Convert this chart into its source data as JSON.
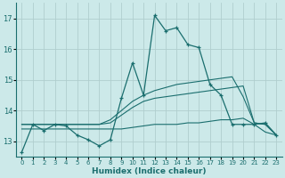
{
  "xlabel": "Humidex (Indice chaleur)",
  "xlim": [
    -0.5,
    23.5
  ],
  "ylim": [
    12.5,
    17.5
  ],
  "yticks": [
    13,
    14,
    15,
    16,
    17
  ],
  "xticks": [
    0,
    1,
    2,
    3,
    4,
    5,
    6,
    7,
    8,
    9,
    10,
    11,
    12,
    13,
    14,
    15,
    16,
    17,
    18,
    19,
    20,
    21,
    22,
    23
  ],
  "bg_color": "#cce9e9",
  "grid_color": "#b0cece",
  "line_color": "#1a6e6e",
  "series1_x": [
    0,
    1,
    2,
    3,
    4,
    5,
    6,
    7,
    8,
    9,
    10,
    11,
    12,
    13,
    14,
    15,
    16,
    17,
    18,
    19,
    20,
    21,
    22,
    23
  ],
  "series1_y": [
    12.65,
    13.55,
    13.35,
    13.55,
    13.5,
    13.2,
    13.05,
    12.85,
    13.05,
    14.4,
    15.55,
    14.5,
    17.1,
    16.6,
    16.7,
    16.15,
    16.05,
    14.85,
    14.5,
    13.55,
    13.55,
    13.55,
    13.6,
    13.2
  ],
  "series2_x": [
    0,
    1,
    2,
    3,
    4,
    5,
    6,
    7,
    8,
    9,
    10,
    11,
    12,
    13,
    14,
    15,
    16,
    17,
    18,
    19,
    20,
    21,
    22,
    23
  ],
  "series2_y": [
    13.4,
    13.4,
    13.4,
    13.4,
    13.4,
    13.4,
    13.4,
    13.4,
    13.4,
    13.4,
    13.45,
    13.5,
    13.55,
    13.55,
    13.55,
    13.6,
    13.6,
    13.65,
    13.7,
    13.7,
    13.75,
    13.55,
    13.3,
    13.2
  ],
  "series3_x": [
    0,
    1,
    2,
    3,
    4,
    5,
    6,
    7,
    8,
    9,
    10,
    11,
    12,
    13,
    14,
    15,
    16,
    17,
    18,
    19,
    20,
    21,
    22,
    23
  ],
  "series3_y": [
    13.55,
    13.55,
    13.55,
    13.55,
    13.55,
    13.55,
    13.55,
    13.55,
    13.6,
    13.85,
    14.1,
    14.3,
    14.4,
    14.45,
    14.5,
    14.55,
    14.6,
    14.65,
    14.7,
    14.75,
    14.8,
    13.6,
    13.55,
    13.2
  ],
  "series4_x": [
    0,
    1,
    2,
    3,
    4,
    5,
    6,
    7,
    8,
    9,
    10,
    11,
    12,
    13,
    14,
    15,
    16,
    17,
    18,
    19,
    20,
    21,
    22,
    23
  ],
  "series4_y": [
    13.55,
    13.55,
    13.55,
    13.55,
    13.55,
    13.55,
    13.55,
    13.55,
    13.7,
    14.0,
    14.3,
    14.5,
    14.65,
    14.75,
    14.85,
    14.9,
    14.95,
    15.0,
    15.05,
    15.1,
    14.45,
    13.6,
    13.55,
    13.2
  ]
}
